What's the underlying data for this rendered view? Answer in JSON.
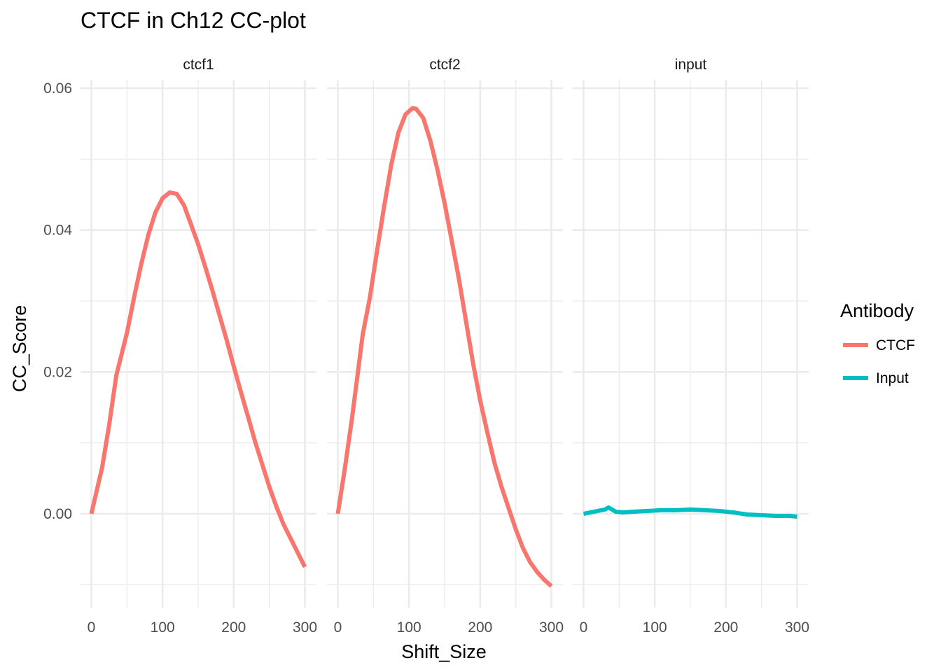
{
  "chart_data": {
    "type": "line",
    "title": "CTCF in Ch12 CC-plot",
    "xlabel": "Shift_Size",
    "ylabel": "CC_Score",
    "xlim": [
      0,
      300
    ],
    "ylim": [
      -0.01,
      0.06
    ],
    "x_ticks": [
      0,
      100,
      200,
      300
    ],
    "x_tick_labels": [
      "0",
      "100",
      "200",
      "300"
    ],
    "y_ticks": [
      0.0,
      0.02,
      0.04,
      0.06
    ],
    "y_tick_labels": [
      "0.00",
      "0.02",
      "0.04",
      "0.06"
    ],
    "grid": true,
    "legend": {
      "title": "Antibody",
      "position": "right",
      "entries": [
        {
          "label": "CTCF",
          "color": "#F8766D"
        },
        {
          "label": "Input",
          "color": "#00BFC4"
        }
      ]
    },
    "panels": [
      {
        "label": "ctcf1",
        "series": [
          {
            "antibody": "CTCF",
            "color": "#F8766D",
            "x": [
              0,
              15,
              25,
              35,
              50,
              60,
              70,
              80,
              90,
              100,
              110,
              120,
              130,
              140,
              150,
              160,
              170,
              180,
              190,
              200,
              210,
              220,
              230,
              240,
              250,
              260,
              270,
              280,
              290,
              300
            ],
            "y": [
              0.0,
              0.0065,
              0.0125,
              0.0195,
              0.0255,
              0.0305,
              0.0352,
              0.0393,
              0.0425,
              0.0445,
              0.0453,
              0.0451,
              0.0435,
              0.0408,
              0.038,
              0.0348,
              0.0315,
              0.028,
              0.0245,
              0.0208,
              0.0172,
              0.0137,
              0.0102,
              0.007,
              0.0038,
              0.001,
              -0.0015,
              -0.0035,
              -0.0055,
              -0.0075
            ]
          }
        ]
      },
      {
        "label": "ctcf2",
        "series": [
          {
            "antibody": "CTCF",
            "color": "#F8766D",
            "x": [
              0,
              10,
              20,
              35,
              45,
              55,
              65,
              75,
              85,
              95,
              105,
              110,
              120,
              130,
              140,
              150,
              160,
              170,
              180,
              190,
              200,
              210,
              220,
              230,
              240,
              250,
              260,
              270,
              280,
              290,
              300
            ],
            "y": [
              0.0,
              0.0065,
              0.0135,
              0.0253,
              0.0305,
              0.037,
              0.0433,
              0.0492,
              0.0537,
              0.0563,
              0.0572,
              0.0571,
              0.0558,
              0.0526,
              0.0485,
              0.0438,
              0.0385,
              0.0332,
              0.0272,
              0.0212,
              0.016,
              0.0115,
              0.0072,
              0.0038,
              0.0008,
              -0.0022,
              -0.0048,
              -0.0068,
              -0.0082,
              -0.0093,
              -0.0102
            ]
          }
        ]
      },
      {
        "label": "input",
        "series": [
          {
            "antibody": "Input",
            "color": "#00BFC4",
            "x": [
              0,
              10,
              20,
              30,
              35,
              40,
              45,
              55,
              70,
              90,
              110,
              130,
              150,
              170,
              190,
              210,
              230,
              250,
              270,
              290,
              300
            ],
            "y": [
              0.0,
              0.0002,
              0.0004,
              0.0006,
              0.0009,
              0.0006,
              0.0003,
              0.0002,
              0.0003,
              0.0004,
              0.0005,
              0.0005,
              0.0006,
              0.0005,
              0.0004,
              0.0002,
              -0.0001,
              -0.0002,
              -0.0003,
              -0.0003,
              -0.0004
            ]
          }
        ]
      }
    ]
  }
}
